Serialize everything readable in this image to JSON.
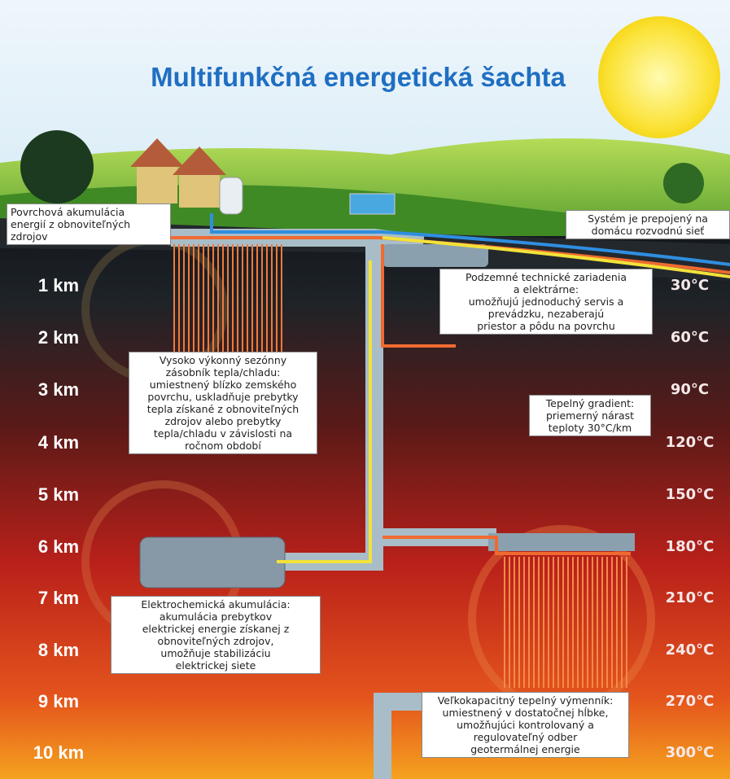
{
  "header": {
    "title": "Multifunkčná energetická šachta"
  },
  "depths": [
    "1 km",
    "2 km",
    "3 km",
    "4 km",
    "5 km",
    "6 km",
    "7 km",
    "8 km",
    "9 km",
    "10 km"
  ],
  "temperatures": [
    "30°C",
    "60°C",
    "90°C",
    "120°C",
    "150°C",
    "180°C",
    "210°C",
    "240°C",
    "270°C",
    "300°C"
  ],
  "callouts": [
    {
      "lines": [
        "Povrchová akumulácia",
        "energií z obnoviteľných",
        "zdrojov"
      ]
    },
    {
      "lines": [
        "Systém je prepojený na",
        "domácu rozvodnú sieť"
      ]
    },
    {
      "lines": [
        "Podzemné technické zariadenia",
        "a elektrárne:",
        "umožňujú jednoduchý servis a",
        "prevádzku, nezaberajú",
        "priestor a pôdu na povrchu"
      ]
    },
    {
      "lines": [
        "Vysoko výkonný sezónny",
        "zásobník tepla/chladu:",
        "umiestnený blízko zemského",
        "povrchu, uskladňuje prebytky",
        "tepla získané z obnoviteľných",
        "zdrojov alebo prebytky",
        "tepla/chladu v závislosti na",
        "ročnom období"
      ]
    },
    {
      "lines": [
        "Tepelný gradient:",
        "priemerný nárast",
        "teploty 30°C/km"
      ]
    },
    {
      "lines": [
        "Elektrochemická akumulácia:",
        "akumulácia prebytkov",
        "elektrickej energie získanej z",
        "obnoviteľných zdrojov,",
        "umožňuje stabilizáciu",
        "elektrickej siete"
      ]
    },
    {
      "lines": [
        "Veľkokapacitný tepelný výmenník:",
        "umiestnený v dostatočnej hĺbke,",
        "umožňujúci kontrolovaný a",
        "regulovateľný odber",
        "geotermálnej energie"
      ]
    }
  ]
}
